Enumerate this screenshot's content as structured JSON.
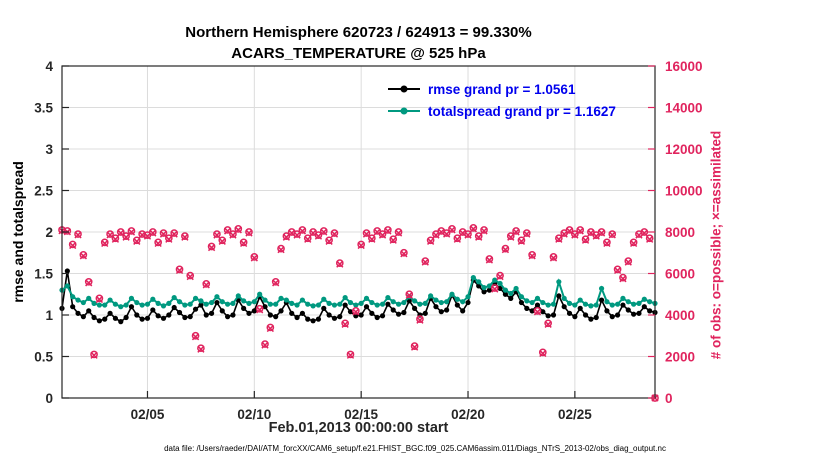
{
  "title": {
    "line1": "Northern Hemisphere 620723 / 624913 = 99.330%",
    "line2": "ACARS_TEMPERATURE @ 525 hPa"
  },
  "footer": "data file: /Users/raeder/DAI/ATM_forcXX/CAM6_setup/f.e21.FHIST_BGC.f09_025.CAM6assim.011/Diags_NTrS_2013-02/obs_diag_output.nc",
  "legend": [
    {
      "label": "rmse grand pr = 1.0561"
    },
    {
      "label": "totalspread grand pr = 1.1627"
    }
  ],
  "colors": {
    "axis": "#262626",
    "grid": "#dcdcdc",
    "rmse": "#000000",
    "totalspread": "#009980",
    "obs": "#e0245e",
    "legend_text": "#0000ee"
  },
  "chart_data": {
    "type": "line",
    "title": [
      "Northern Hemisphere 620723 / 624913 = 99.330%",
      "ACARS_TEMPERATURE @ 525 hPa"
    ],
    "xlabel": "Feb.01,2013 00:00:00 start",
    "ylabel_left": "rmse and totalspread",
    "ylabel_right": "# of obs: o=possible; ×=assimilated",
    "xlim": [
      0,
      27.75
    ],
    "ylim_left": [
      0,
      4
    ],
    "ylim_right": [
      0,
      16000
    ],
    "yticks_left": [
      0,
      0.5,
      1,
      1.5,
      2,
      2.5,
      3,
      3.5,
      4
    ],
    "yticks_right": [
      0,
      2000,
      4000,
      6000,
      8000,
      10000,
      12000,
      14000,
      16000
    ],
    "xticks": [
      {
        "t": 4,
        "label": "02/05"
      },
      {
        "t": 9,
        "label": "02/10"
      },
      {
        "t": 14,
        "label": "02/15"
      },
      {
        "t": 19,
        "label": "02/20"
      },
      {
        "t": 24,
        "label": "02/25"
      }
    ],
    "grid": true,
    "legend_position": "top-center-inside",
    "x": [
      0,
      0.25,
      0.5,
      0.75,
      1,
      1.25,
      1.5,
      1.75,
      2,
      2.25,
      2.5,
      2.75,
      3,
      3.25,
      3.5,
      3.75,
      4,
      4.25,
      4.5,
      4.75,
      5,
      5.25,
      5.5,
      5.75,
      6,
      6.25,
      6.5,
      6.75,
      7,
      7.25,
      7.5,
      7.75,
      8,
      8.25,
      8.5,
      8.75,
      9,
      9.25,
      9.5,
      9.75,
      10,
      10.25,
      10.5,
      10.75,
      11,
      11.25,
      11.5,
      11.75,
      12,
      12.25,
      12.5,
      12.75,
      13,
      13.25,
      13.5,
      13.75,
      14,
      14.25,
      14.5,
      14.75,
      15,
      15.25,
      15.5,
      15.75,
      16,
      16.25,
      16.5,
      16.75,
      17,
      17.25,
      17.5,
      17.75,
      18,
      18.25,
      18.5,
      18.75,
      19,
      19.25,
      19.5,
      19.75,
      20,
      20.25,
      20.5,
      20.75,
      21,
      21.25,
      21.5,
      21.75,
      22,
      22.25,
      22.5,
      22.75,
      23,
      23.25,
      23.5,
      23.75,
      24,
      24.25,
      24.5,
      24.75,
      25,
      25.25,
      25.5,
      25.75,
      26,
      26.25,
      26.5,
      26.75,
      27,
      27.25,
      27.5,
      27.75
    ],
    "series": [
      {
        "name": "rmse",
        "axis": "left",
        "color": "#000000",
        "marker": "dot",
        "line": true,
        "width": 1.6,
        "grand_mean": 1.0561,
        "values": [
          1.08,
          1.53,
          1.1,
          1.02,
          0.98,
          1.05,
          0.97,
          0.93,
          0.95,
          1.02,
          0.96,
          0.92,
          0.97,
          1.1,
          1.0,
          0.95,
          0.96,
          1.06,
          0.99,
          0.96,
          1.0,
          1.09,
          1.03,
          0.97,
          0.98,
          1.07,
          1.12,
          1.0,
          1.02,
          1.15,
          1.05,
          0.98,
          1.0,
          1.18,
          1.08,
          1.02,
          1.05,
          1.22,
          1.1,
          1.0,
          0.98,
          1.05,
          1.15,
          1.02,
          0.97,
          1.02,
          0.95,
          0.93,
          0.95,
          1.08,
          1.0,
          0.96,
          0.98,
          1.12,
          1.04,
          0.99,
          1.0,
          1.1,
          1.02,
          0.97,
          0.99,
          1.13,
          1.06,
          1.01,
          1.03,
          1.17,
          1.08,
          1.0,
          1.02,
          1.2,
          1.1,
          1.04,
          1.06,
          1.24,
          1.12,
          1.05,
          1.15,
          1.42,
          1.35,
          1.28,
          1.3,
          1.38,
          1.32,
          1.25,
          1.2,
          1.28,
          1.15,
          1.08,
          1.05,
          1.12,
          1.04,
          0.99,
          1.0,
          1.23,
          1.1,
          1.02,
          0.98,
          1.08,
          1.0,
          0.95,
          0.97,
          1.18,
          1.05,
          0.98,
          1.0,
          1.12,
          1.06,
          1.01,
          1.02,
          1.1,
          1.05,
          1.03
        ]
      },
      {
        "name": "totalspread",
        "axis": "left",
        "color": "#009980",
        "marker": "dot",
        "line": true,
        "width": 2,
        "grand_mean": 1.1627,
        "values": [
          1.3,
          1.35,
          1.22,
          1.18,
          1.15,
          1.2,
          1.14,
          1.12,
          1.12,
          1.18,
          1.13,
          1.1,
          1.12,
          1.2,
          1.15,
          1.12,
          1.13,
          1.19,
          1.14,
          1.11,
          1.14,
          1.21,
          1.16,
          1.12,
          1.13,
          1.2,
          1.17,
          1.13,
          1.15,
          1.22,
          1.16,
          1.13,
          1.14,
          1.23,
          1.17,
          1.14,
          1.16,
          1.25,
          1.18,
          1.13,
          1.13,
          1.2,
          1.18,
          1.14,
          1.12,
          1.18,
          1.13,
          1.11,
          1.12,
          1.19,
          1.14,
          1.12,
          1.13,
          1.21,
          1.15,
          1.12,
          1.14,
          1.2,
          1.15,
          1.12,
          1.13,
          1.21,
          1.16,
          1.13,
          1.15,
          1.22,
          1.17,
          1.13,
          1.14,
          1.23,
          1.18,
          1.15,
          1.16,
          1.25,
          1.19,
          1.16,
          1.22,
          1.45,
          1.4,
          1.33,
          1.35,
          1.42,
          1.38,
          1.3,
          1.26,
          1.32,
          1.22,
          1.17,
          1.15,
          1.2,
          1.15,
          1.12,
          1.13,
          1.4,
          1.2,
          1.14,
          1.12,
          1.18,
          1.13,
          1.11,
          1.12,
          1.32,
          1.16,
          1.12,
          1.13,
          1.2,
          1.16,
          1.13,
          1.14,
          1.19,
          1.16,
          1.14
        ]
      },
      {
        "name": "possible",
        "axis": "right",
        "color": "#e0245e",
        "marker": "circle",
        "line": false,
        "values": [
          8100,
          8050,
          7400,
          7900,
          6900,
          5600,
          2100,
          4800,
          7500,
          7900,
          7700,
          8000,
          7800,
          8050,
          7600,
          7900,
          7850,
          8000,
          7500,
          7950,
          7700,
          7950,
          6200,
          7800,
          5900,
          3000,
          2400,
          5500,
          7300,
          7900,
          7600,
          8100,
          7900,
          8150,
          7500,
          8000,
          6800,
          4300,
          2600,
          3400,
          5600,
          7200,
          7800,
          8000,
          7900,
          8100,
          7700,
          8000,
          7850,
          8050,
          7600,
          7950,
          6500,
          3600,
          2100,
          4200,
          7400,
          7950,
          7700,
          8050,
          7900,
          8100,
          7650,
          8000,
          7000,
          5000,
          2500,
          3800,
          6600,
          7600,
          7900,
          8050,
          7950,
          8150,
          7700,
          8000,
          7900,
          8200,
          7800,
          8100,
          6700,
          5300,
          5900,
          7200,
          7800,
          8050,
          7600,
          7950,
          6900,
          4200,
          2200,
          3600,
          6800,
          7700,
          7950,
          8100,
          7900,
          8100,
          7650,
          8000,
          7850,
          8000,
          7500,
          7900,
          6200,
          5800,
          6600,
          7500,
          7900,
          8000,
          7700,
          0
        ]
      },
      {
        "name": "assimilated",
        "axis": "right",
        "color": "#e0245e",
        "marker": "x",
        "line": false,
        "values": [
          8060,
          8010,
          7350,
          7860,
          6850,
          5550,
          2060,
          4750,
          7450,
          7860,
          7650,
          7950,
          7750,
          8000,
          7550,
          7860,
          7800,
          7950,
          7450,
          7900,
          7650,
          7900,
          6150,
          7750,
          5850,
          2950,
          2350,
          5450,
          7250,
          7850,
          7550,
          8050,
          7850,
          8100,
          7450,
          7950,
          6750,
          4250,
          2550,
          3350,
          5550,
          7150,
          7750,
          7950,
          7850,
          8050,
          7650,
          7950,
          7800,
          8000,
          7550,
          7900,
          6450,
          3550,
          2060,
          4150,
          7350,
          7900,
          7650,
          8000,
          7850,
          8050,
          7600,
          7950,
          6950,
          4950,
          2450,
          3750,
          6550,
          7550,
          7850,
          8000,
          7900,
          8100,
          7650,
          7950,
          7850,
          8150,
          7750,
          8050,
          6650,
          5250,
          5850,
          7150,
          7750,
          8000,
          7550,
          7900,
          6850,
          4150,
          2150,
          3550,
          6750,
          7650,
          7900,
          8050,
          7850,
          8050,
          7600,
          7950,
          7800,
          7950,
          7450,
          7860,
          6150,
          5750,
          6550,
          7450,
          7850,
          7950,
          7650,
          0
        ]
      }
    ]
  }
}
